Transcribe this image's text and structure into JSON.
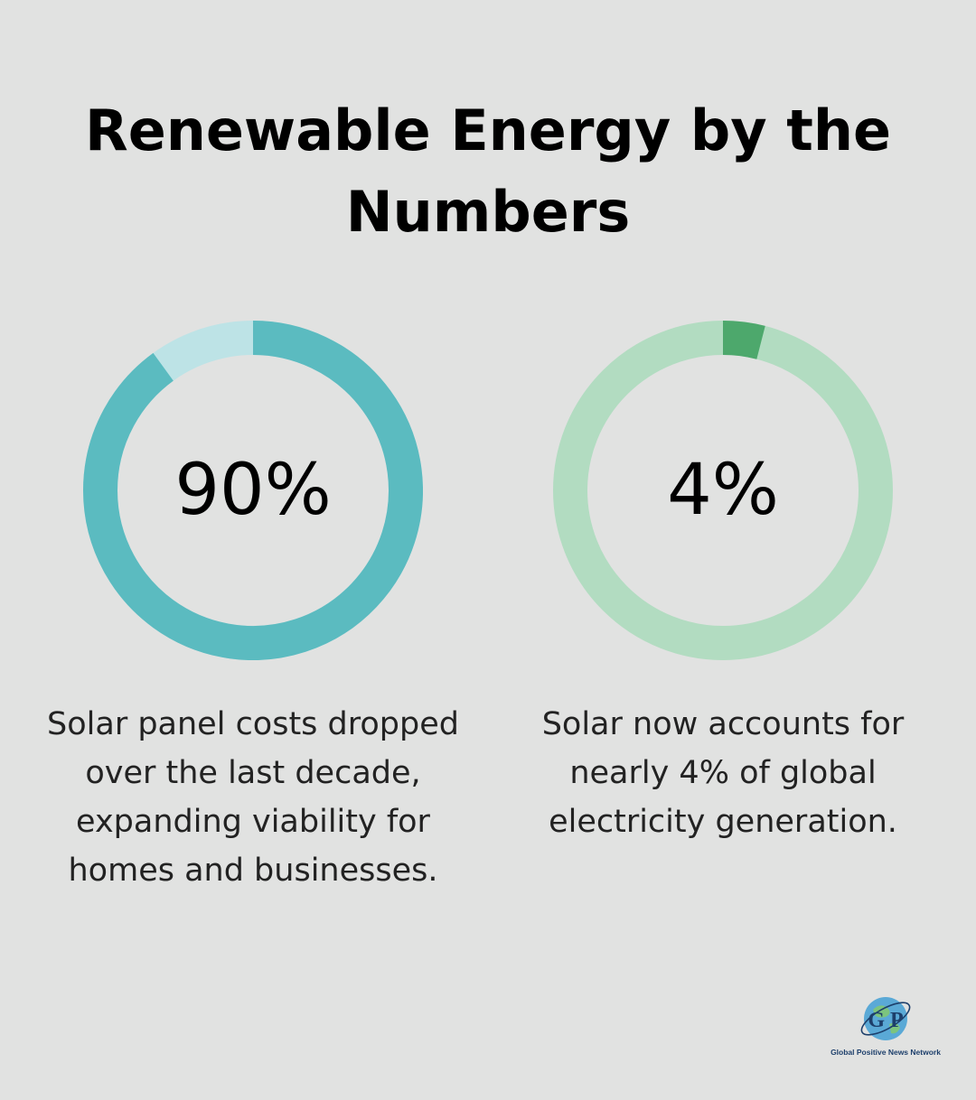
{
  "title": "Renewable Energy by the Numbers",
  "chart_data": [
    {
      "type": "pie",
      "value_label": "90%",
      "values": [
        90,
        10
      ],
      "colors": [
        "#5bbbc0",
        "#bde3e6"
      ],
      "caption": "Solar panel costs dropped over the last decade, expanding viability for homes and businesses."
    },
    {
      "type": "pie",
      "value_label": "4%",
      "values": [
        4,
        96
      ],
      "colors": [
        "#4da86c",
        "#b2dcc1"
      ],
      "caption": "Solar now accounts for nearly 4% of global electricity generation."
    }
  ],
  "logo": {
    "letters": "G P",
    "text": "Global Positive News Network"
  }
}
